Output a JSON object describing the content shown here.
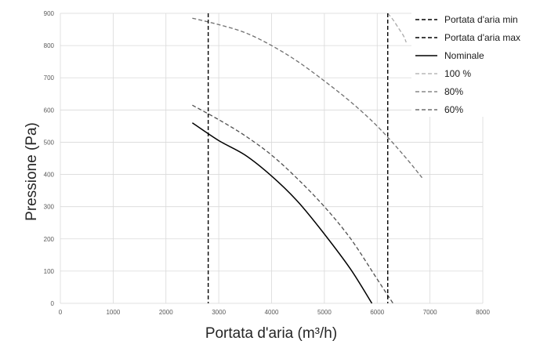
{
  "chart_data": {
    "type": "line",
    "title": "",
    "xlabel": "Portata d'aria (m³/h)",
    "ylabel": "Pressione (Pa)",
    "xlim": [
      0,
      8000
    ],
    "ylim": [
      0,
      900
    ],
    "xticks": [
      0,
      1000,
      2000,
      3000,
      4000,
      5000,
      6000,
      7000,
      8000
    ],
    "yticks": [
      0,
      100,
      200,
      300,
      400,
      500,
      600,
      700,
      800,
      900
    ],
    "grid": true,
    "legend_position": "top-right",
    "vlines": [
      {
        "name": "Portata d'aria min",
        "x": 2800,
        "color": "#000000",
        "style": "dashed"
      },
      {
        "name": "Portata d'aria max",
        "x": 6200,
        "color": "#000000",
        "style": "dashed"
      }
    ],
    "series": [
      {
        "name": "Nominale",
        "color": "#000000",
        "style": "solid",
        "x": [
          2500,
          3000,
          3500,
          4000,
          4500,
          5000,
          5500,
          5900
        ],
        "y": [
          560,
          505,
          460,
          395,
          315,
          215,
          105,
          0
        ]
      },
      {
        "name": "100 %",
        "color": "#aaaaaa",
        "style": "dashed",
        "x": [
          6200,
          6300,
          6400,
          6500,
          6550
        ],
        "y": [
          900,
          880,
          855,
          830,
          810
        ]
      },
      {
        "name": "80%",
        "color": "#707070",
        "style": "dashed",
        "x": [
          2500,
          3000,
          3500,
          4000,
          4500,
          5000,
          5500,
          6000,
          6500,
          6850
        ],
        "y": [
          885,
          865,
          840,
          800,
          750,
          690,
          625,
          550,
          460,
          390
        ]
      },
      {
        "name": "60%",
        "color": "#505050",
        "style": "dashed",
        "x": [
          2500,
          3000,
          3500,
          4000,
          4500,
          5000,
          5500,
          6000,
          6300
        ],
        "y": [
          615,
          570,
          520,
          460,
          385,
          300,
          200,
          75,
          0
        ]
      }
    ]
  }
}
